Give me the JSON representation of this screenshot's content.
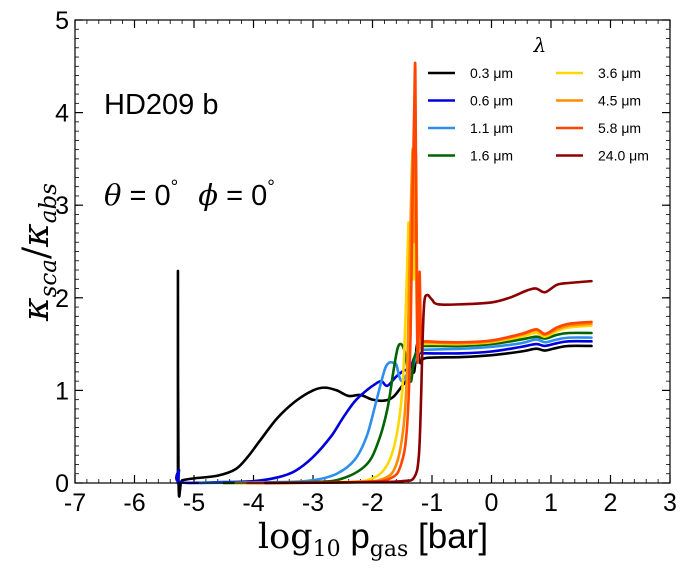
{
  "chart_data": {
    "type": "line",
    "title": "",
    "xlabel": {
      "prefix": "log",
      "sub1": "10",
      "main": " p",
      "sub2": "gas",
      "suffix": " [bar]"
    },
    "ylabel": {
      "k1": "κ",
      "s1": "sca",
      "slash": "/",
      "k2": "κ",
      "s2": "abs"
    },
    "xlim": [
      -7,
      3
    ],
    "ylim": [
      0,
      5
    ],
    "xticks": [
      -7,
      -6,
      -5,
      -4,
      -3,
      -2,
      -1,
      0,
      1,
      2,
      3
    ],
    "yticks": [
      0,
      1,
      2,
      3,
      4,
      5
    ],
    "xtick_labels": [
      "-7",
      "-6",
      "-5",
      "-4",
      "-3",
      "-2",
      "-1",
      "0",
      "1",
      "2",
      "3"
    ],
    "ytick_labels": [
      "0",
      "1",
      "2",
      "3",
      "4",
      "5"
    ],
    "annotations": {
      "planet": "HD209 b",
      "theta_sym": "θ",
      "theta_val": " = 0",
      "phi_sym": "ϕ",
      "phi_val": " = 0",
      "degree": "°"
    },
    "legend": {
      "title": "λ",
      "location": "upper right",
      "columns": 2
    },
    "series": [
      {
        "name": "0.3 μm",
        "color": "#000000",
        "points": [
          [
            -5.27,
            0
          ],
          [
            -5.27,
            2.29
          ],
          [
            -5.26,
            0.02
          ],
          [
            -5.2,
            0.03
          ],
          [
            -5.0,
            0.05
          ],
          [
            -4.6,
            0.08
          ],
          [
            -4.3,
            0.15
          ],
          [
            -4.1,
            0.28
          ],
          [
            -3.9,
            0.45
          ],
          [
            -3.6,
            0.7
          ],
          [
            -3.3,
            0.88
          ],
          [
            -3.0,
            1.0
          ],
          [
            -2.8,
            1.03
          ],
          [
            -2.6,
            1.0
          ],
          [
            -2.4,
            0.94
          ],
          [
            -2.2,
            0.95
          ],
          [
            -2.0,
            0.9
          ],
          [
            -1.8,
            0.89
          ],
          [
            -1.65,
            0.93
          ],
          [
            -1.5,
            1.05
          ],
          [
            -1.42,
            1.12
          ],
          [
            -1.38,
            1.25
          ],
          [
            -1.3,
            1.2
          ],
          [
            -1.25,
            1.5
          ],
          [
            -1.2,
            1.3
          ],
          [
            -1.1,
            1.35
          ],
          [
            -0.5,
            1.36
          ],
          [
            0,
            1.38
          ],
          [
            0.5,
            1.42
          ],
          [
            0.75,
            1.45
          ],
          [
            0.9,
            1.43
          ],
          [
            1.1,
            1.46
          ],
          [
            1.3,
            1.48
          ],
          [
            1.68,
            1.48
          ]
        ]
      },
      {
        "name": "0.6 μm",
        "color": "#0000dd",
        "points": [
          [
            -5.27,
            0
          ],
          [
            -5.25,
            0.14
          ],
          [
            -5.24,
            0.01
          ],
          [
            -4.5,
            0.01
          ],
          [
            -4.0,
            0.02
          ],
          [
            -3.6,
            0.06
          ],
          [
            -3.3,
            0.13
          ],
          [
            -3.0,
            0.28
          ],
          [
            -2.7,
            0.5
          ],
          [
            -2.5,
            0.7
          ],
          [
            -2.3,
            0.88
          ],
          [
            -2.1,
            1.0
          ],
          [
            -1.95,
            1.07
          ],
          [
            -1.85,
            1.1
          ],
          [
            -1.75,
            1.05
          ],
          [
            -1.6,
            1.15
          ],
          [
            -1.45,
            1.22
          ],
          [
            -1.38,
            1.2
          ],
          [
            -1.3,
            1.35
          ],
          [
            -1.22,
            1.4
          ],
          [
            -1.1,
            1.4
          ],
          [
            -0.5,
            1.4
          ],
          [
            0,
            1.42
          ],
          [
            0.5,
            1.47
          ],
          [
            0.75,
            1.5
          ],
          [
            0.9,
            1.48
          ],
          [
            1.1,
            1.51
          ],
          [
            1.3,
            1.53
          ],
          [
            1.68,
            1.53
          ]
        ]
      },
      {
        "name": "1.1 μm",
        "color": "#2e8ef0",
        "points": [
          [
            -4.9,
            0
          ],
          [
            -3.5,
            0.01
          ],
          [
            -3.0,
            0.03
          ],
          [
            -2.6,
            0.1
          ],
          [
            -2.3,
            0.25
          ],
          [
            -2.1,
            0.5
          ],
          [
            -1.95,
            0.85
          ],
          [
            -1.85,
            1.1
          ],
          [
            -1.78,
            1.25
          ],
          [
            -1.72,
            1.3
          ],
          [
            -1.66,
            1.3
          ],
          [
            -1.6,
            1.28
          ],
          [
            -1.55,
            1.15
          ],
          [
            -1.5,
            1.1
          ],
          [
            -1.42,
            1.17
          ],
          [
            -1.36,
            1.15
          ],
          [
            -1.3,
            1.3
          ],
          [
            -1.2,
            1.43
          ],
          [
            -1.1,
            1.44
          ],
          [
            -0.5,
            1.45
          ],
          [
            0,
            1.47
          ],
          [
            0.5,
            1.51
          ],
          [
            0.75,
            1.55
          ],
          [
            0.9,
            1.52
          ],
          [
            1.1,
            1.55
          ],
          [
            1.3,
            1.57
          ],
          [
            1.68,
            1.57
          ]
        ]
      },
      {
        "name": "1.6 μm",
        "color": "#006400",
        "points": [
          [
            -4.5,
            0
          ],
          [
            -3.0,
            0.01
          ],
          [
            -2.5,
            0.05
          ],
          [
            -2.1,
            0.2
          ],
          [
            -1.9,
            0.45
          ],
          [
            -1.75,
            0.8
          ],
          [
            -1.65,
            1.2
          ],
          [
            -1.58,
            1.45
          ],
          [
            -1.52,
            1.5
          ],
          [
            -1.46,
            1.42
          ],
          [
            -1.4,
            1.2
          ],
          [
            -1.35,
            1.1
          ],
          [
            -1.3,
            1.35
          ],
          [
            -1.2,
            1.47
          ],
          [
            -1.1,
            1.48
          ],
          [
            -0.5,
            1.48
          ],
          [
            0,
            1.5
          ],
          [
            0.5,
            1.55
          ],
          [
            0.75,
            1.58
          ],
          [
            0.9,
            1.56
          ],
          [
            1.1,
            1.6
          ],
          [
            1.3,
            1.62
          ],
          [
            1.68,
            1.62
          ]
        ]
      },
      {
        "name": "3.6 μm",
        "color": "#ffd700",
        "points": [
          [
            -4.3,
            0
          ],
          [
            -2.5,
            0.01
          ],
          [
            -2.0,
            0.05
          ],
          [
            -1.75,
            0.2
          ],
          [
            -1.6,
            0.5
          ],
          [
            -1.5,
            1.0
          ],
          [
            -1.45,
            1.7
          ],
          [
            -1.41,
            2.5
          ],
          [
            -1.39,
            2.8
          ],
          [
            -1.36,
            2.1
          ],
          [
            -1.33,
            3.3
          ],
          [
            -1.31,
            2.2
          ],
          [
            -1.28,
            3.5
          ],
          [
            -1.26,
            2.0
          ],
          [
            -1.22,
            1.45
          ],
          [
            -1.15,
            1.5
          ],
          [
            -0.5,
            1.5
          ],
          [
            0,
            1.52
          ],
          [
            0.5,
            1.58
          ],
          [
            0.75,
            1.62
          ],
          [
            0.9,
            1.58
          ],
          [
            1.1,
            1.64
          ],
          [
            1.3,
            1.68
          ],
          [
            1.68,
            1.7
          ]
        ]
      },
      {
        "name": "4.5 μm",
        "color": "#ff8c00",
        "points": [
          [
            -4.1,
            0
          ],
          [
            -2.3,
            0.01
          ],
          [
            -1.8,
            0.05
          ],
          [
            -1.6,
            0.2
          ],
          [
            -1.48,
            0.6
          ],
          [
            -1.42,
            1.2
          ],
          [
            -1.38,
            2.3
          ],
          [
            -1.35,
            3.1
          ],
          [
            -1.32,
            3.6
          ],
          [
            -1.3,
            2.6
          ],
          [
            -1.27,
            3.55
          ],
          [
            -1.25,
            2.2
          ],
          [
            -1.22,
            1.5
          ],
          [
            -1.15,
            1.52
          ],
          [
            -0.5,
            1.51
          ],
          [
            0,
            1.53
          ],
          [
            0.5,
            1.6
          ],
          [
            0.75,
            1.65
          ],
          [
            0.9,
            1.6
          ],
          [
            1.1,
            1.66
          ],
          [
            1.3,
            1.7
          ],
          [
            1.68,
            1.72
          ]
        ]
      },
      {
        "name": "5.8 μm",
        "color": "#ff4500",
        "points": [
          [
            -4.1,
            0
          ],
          [
            -2.2,
            0.01
          ],
          [
            -1.7,
            0.05
          ],
          [
            -1.52,
            0.2
          ],
          [
            -1.42,
            0.6
          ],
          [
            -1.36,
            1.6
          ],
          [
            -1.33,
            3.0
          ],
          [
            -1.3,
            4.0
          ],
          [
            -1.28,
            4.46
          ],
          [
            -1.26,
            2.4
          ],
          [
            -1.24,
            1.3
          ],
          [
            -1.21,
            2.28
          ],
          [
            -1.18,
            1.55
          ],
          [
            -1.1,
            1.53
          ],
          [
            -0.5,
            1.52
          ],
          [
            0,
            1.54
          ],
          [
            0.5,
            1.61
          ],
          [
            0.75,
            1.66
          ],
          [
            0.9,
            1.61
          ],
          [
            1.1,
            1.68
          ],
          [
            1.3,
            1.72
          ],
          [
            1.68,
            1.74
          ]
        ]
      },
      {
        "name": "24.0 μm",
        "color": "#8b0000",
        "points": [
          [
            -3.8,
            0
          ],
          [
            -2.0,
            0.01
          ],
          [
            -1.5,
            0.02
          ],
          [
            -1.3,
            0.06
          ],
          [
            -1.22,
            0.3
          ],
          [
            -1.18,
            1.0
          ],
          [
            -1.16,
            1.5
          ],
          [
            -1.13,
            1.95
          ],
          [
            -1.08,
            2.03
          ],
          [
            -1.0,
            1.98
          ],
          [
            -0.9,
            1.93
          ],
          [
            -0.5,
            1.93
          ],
          [
            0,
            1.95
          ],
          [
            0.3,
            2.0
          ],
          [
            0.6,
            2.08
          ],
          [
            0.75,
            2.1
          ],
          [
            0.9,
            2.06
          ],
          [
            1.1,
            2.14
          ],
          [
            1.3,
            2.16
          ],
          [
            1.68,
            2.18
          ]
        ]
      }
    ]
  }
}
